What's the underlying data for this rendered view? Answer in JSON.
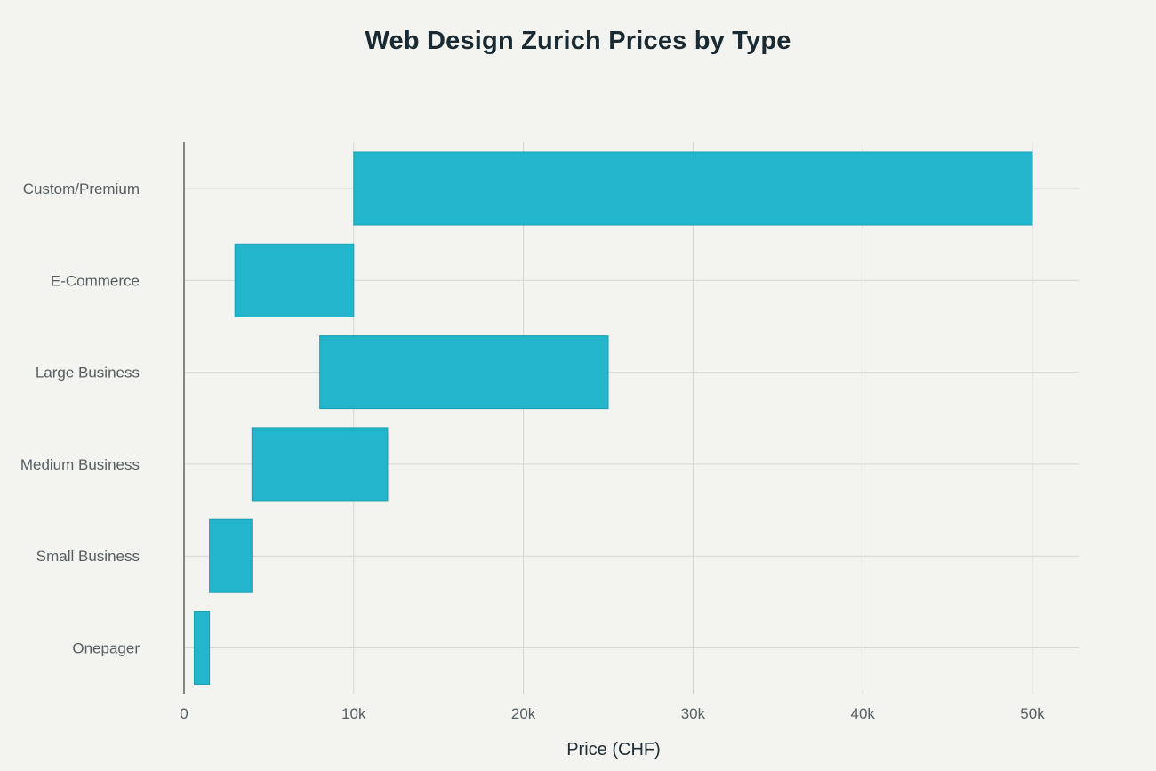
{
  "chart_data": {
    "type": "bar",
    "orientation": "horizontal",
    "title": "Web Design Zurich Prices by Type",
    "xlabel": "Price (CHF)",
    "ylabel": "",
    "categories": [
      "Onepager",
      "Small Business",
      "Medium Business",
      "Large Business",
      "E-Commerce",
      "Custom/Premium"
    ],
    "ranges": [
      {
        "category": "Onepager",
        "min": 600,
        "max": 1500
      },
      {
        "category": "Small Business",
        "min": 1500,
        "max": 4000
      },
      {
        "category": "Medium Business",
        "min": 4000,
        "max": 12000
      },
      {
        "category": "Large Business",
        "min": 8000,
        "max": 25000
      },
      {
        "category": "E-Commerce",
        "min": 3000,
        "max": 10000
      },
      {
        "category": "Custom/Premium",
        "min": 10000,
        "max": 50000
      }
    ],
    "xlim": [
      0,
      53000
    ],
    "xticks": [
      0,
      10000,
      20000,
      30000,
      40000,
      50000
    ],
    "xtick_labels": [
      "0",
      "10k",
      "20k",
      "30k",
      "40k",
      "50k"
    ],
    "grid": true,
    "legend": "none",
    "bar_color": "#22b5cb"
  }
}
